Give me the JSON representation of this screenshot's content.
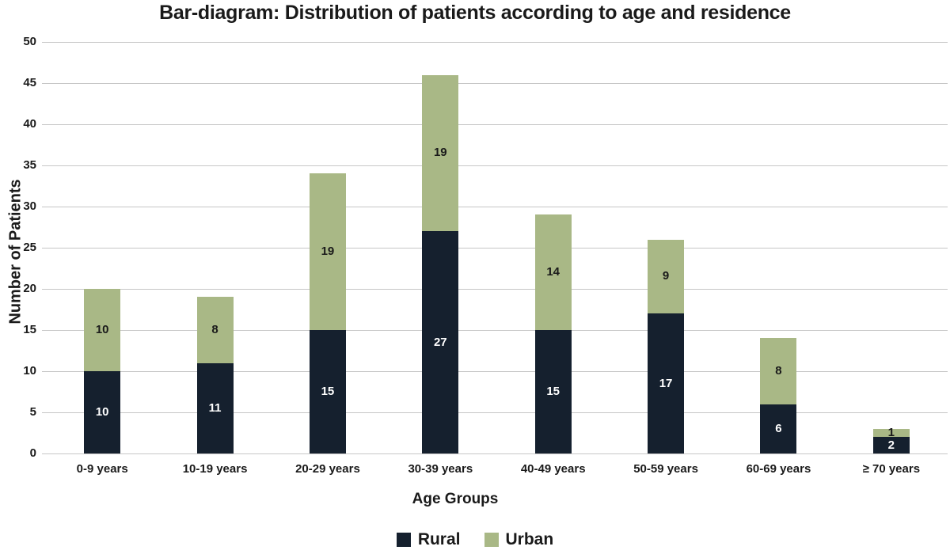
{
  "title": "Bar-diagram: Distribution of patients according to age and residence",
  "chart_data": {
    "type": "bar",
    "stacked": true,
    "title": "Bar-diagram: Distribution of patients according to age and residence",
    "categories": [
      "0-9 years",
      "10-19 years",
      "20-29 years",
      "30-39 years",
      "40-49 years",
      "50-59 years",
      "60-69 years",
      "≥ 70 years"
    ],
    "series": [
      {
        "name": "Rural",
        "color": "#15202e",
        "label_color": "#ffffff",
        "values": [
          10,
          11,
          15,
          27,
          15,
          17,
          6,
          2
        ]
      },
      {
        "name": "Urban",
        "color": "#a9b886",
        "label_color": "#1a1a1a",
        "values": [
          10,
          8,
          19,
          19,
          14,
          9,
          8,
          1
        ]
      }
    ],
    "totals": [
      20,
      19,
      34,
      46,
      29,
      26,
      14,
      3
    ],
    "xlabel": "Age Groups",
    "ylabel": "Number of Patients",
    "ylim": [
      0,
      50
    ],
    "yticks": [
      0,
      5,
      10,
      15,
      20,
      25,
      30,
      35,
      40,
      45,
      50
    ],
    "grid": true,
    "legend_position": "bottom"
  },
  "colors": {
    "background": "#ffffff",
    "gridline": "#c7c7c7",
    "text": "#1a1a1a",
    "rural": "#15202e",
    "urban": "#a9b886"
  }
}
